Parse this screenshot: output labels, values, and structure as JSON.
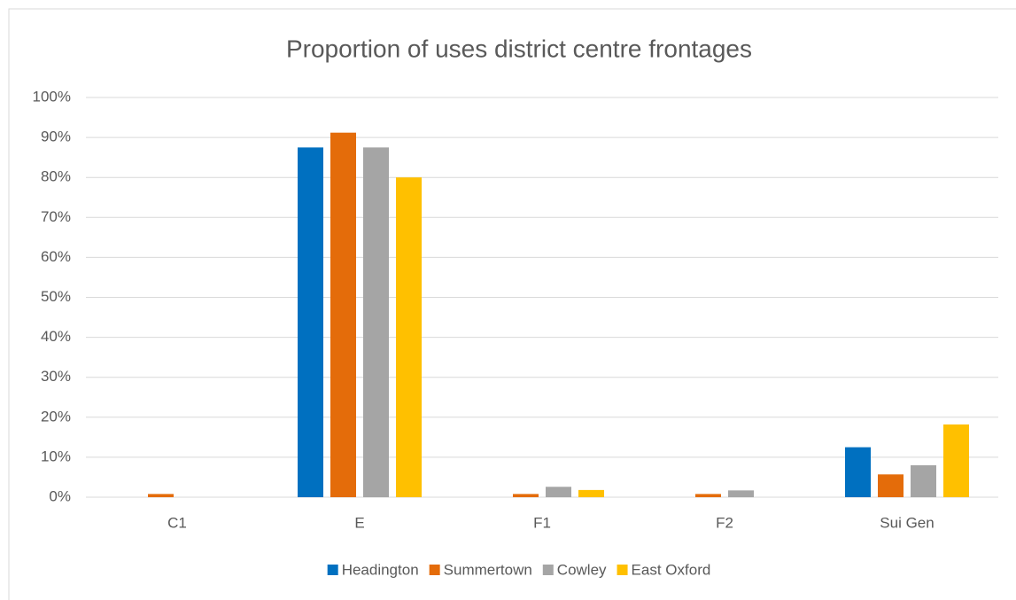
{
  "chart_data": {
    "type": "bar",
    "title": "Proportion of uses district centre frontages",
    "categories": [
      "C1",
      "E",
      "F1",
      "F2",
      "Sui Gen"
    ],
    "series": [
      {
        "name": "Headington",
        "color": "#0070c0",
        "values": [
          0,
          87.5,
          0,
          0,
          12.5
        ]
      },
      {
        "name": "Summertown",
        "color": "#e46c0a",
        "values": [
          0.8,
          91.2,
          0.8,
          0.8,
          5.7
        ]
      },
      {
        "name": "Cowley",
        "color": "#a5a5a5",
        "values": [
          0,
          87.5,
          2.6,
          1.7,
          8
        ]
      },
      {
        "name": "East Oxford",
        "color": "#ffc000",
        "values": [
          0,
          80,
          1.8,
          0,
          18.2
        ]
      }
    ],
    "ylim": [
      0,
      100
    ],
    "yticks": [
      {
        "value": 0,
        "label": "0%"
      },
      {
        "value": 10,
        "label": "10%"
      },
      {
        "value": 20,
        "label": "20%"
      },
      {
        "value": 30,
        "label": "30%"
      },
      {
        "value": 40,
        "label": "40%"
      },
      {
        "value": 50,
        "label": "50%"
      },
      {
        "value": 60,
        "label": "60%"
      },
      {
        "value": 70,
        "label": "70%"
      },
      {
        "value": 80,
        "label": "80%"
      },
      {
        "value": 90,
        "label": "90%"
      },
      {
        "value": 100,
        "label": "100%"
      }
    ],
    "grid": true,
    "legend": "bottom"
  }
}
